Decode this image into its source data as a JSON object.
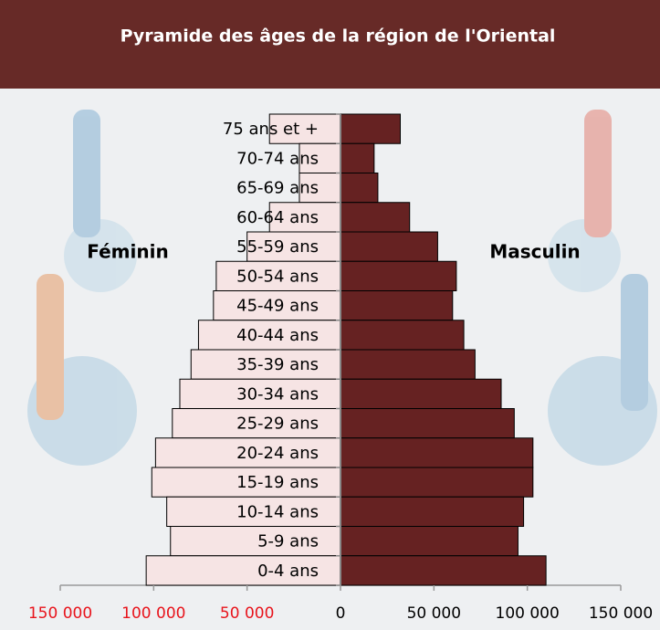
{
  "chart_data": {
    "type": "pyramid",
    "title": "Pyramide des âges de la région de l'Oriental",
    "categories": [
      "75 ans et +",
      "70-74 ans",
      "65-69 ans",
      "60-64 ans",
      "55-59 ans",
      "50-54 ans",
      "45-49 ans",
      "40-44 ans",
      "35-39 ans",
      "30-34 ans",
      "25-29 ans",
      "20-24 ans",
      "15-19 ans",
      "10-14 ans",
      "5-9 ans",
      "0-4 ans"
    ],
    "series": [
      {
        "name": "Féminin",
        "color": "#f6e4e4",
        "values": [
          -38000,
          -22000,
          -22000,
          -38000,
          -50000,
          -66500,
          -68000,
          -76000,
          -80000,
          -86000,
          -90000,
          -99000,
          -101000,
          -93000,
          -91000,
          -104000
        ]
      },
      {
        "name": "Masculin",
        "color": "#662222",
        "values": [
          32000,
          18000,
          20000,
          37000,
          52000,
          62000,
          60000,
          66000,
          72000,
          86000,
          93000,
          103000,
          103000,
          98000,
          95000,
          110000
        ]
      }
    ],
    "xlim": [
      -150000,
      150000
    ],
    "xticks": [
      {
        "value": -150000,
        "label": "150 000"
      },
      {
        "value": -100000,
        "label": "100 000"
      },
      {
        "value": -50000,
        "label": "50 000"
      },
      0,
      {
        "value": 50000,
        "label": "50 000"
      },
      {
        "value": 100000,
        "label": "100 000"
      },
      {
        "value": 150000,
        "label": "150 000"
      }
    ]
  }
}
